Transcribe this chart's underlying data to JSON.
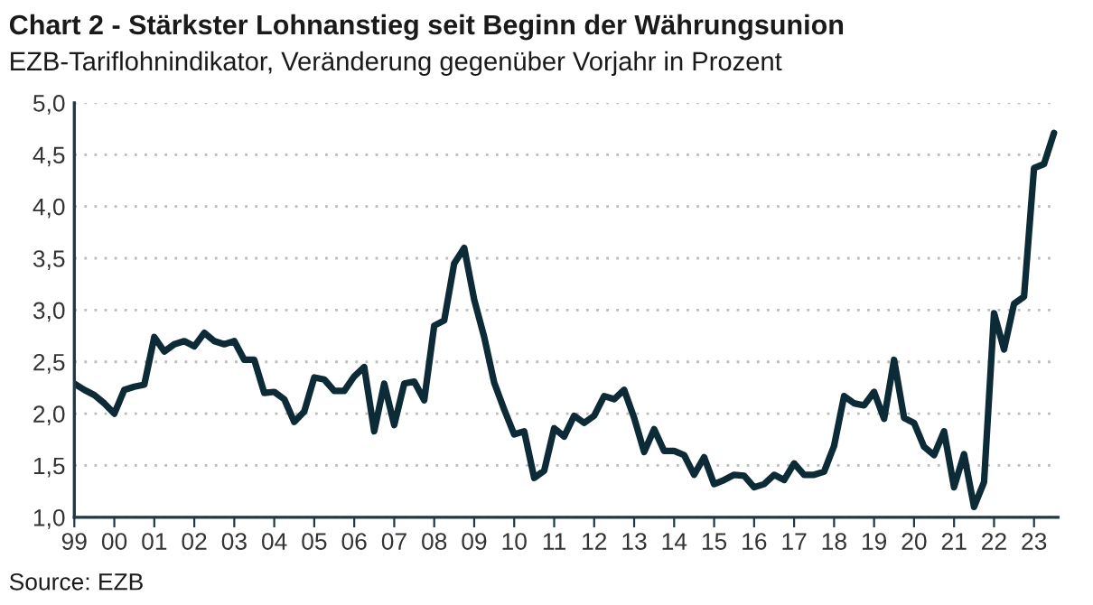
{
  "chart_data": {
    "type": "line",
    "title": "Chart 2 - Stärkster Lohnanstieg seit Beginn der Währungsunion",
    "subtitle": "EZB-Tariflohnindikator, Veränderung gegenüber Vorjahr in Prozent",
    "annotations": [
      "Source: EZB"
    ],
    "x": [
      1999.0,
      1999.25,
      1999.5,
      1999.75,
      2000.0,
      2000.25,
      2000.5,
      2000.75,
      2001.0,
      2001.25,
      2001.5,
      2001.75,
      2002.0,
      2002.25,
      2002.5,
      2002.75,
      2003.0,
      2003.25,
      2003.5,
      2003.75,
      2004.0,
      2004.25,
      2004.5,
      2004.75,
      2005.0,
      2005.25,
      2005.5,
      2005.75,
      2006.0,
      2006.25,
      2006.5,
      2006.75,
      2007.0,
      2007.25,
      2007.5,
      2007.75,
      2008.0,
      2008.25,
      2008.5,
      2008.75,
      2009.0,
      2009.25,
      2009.5,
      2009.75,
      2010.0,
      2010.25,
      2010.5,
      2010.75,
      2011.0,
      2011.25,
      2011.5,
      2011.75,
      2012.0,
      2012.25,
      2012.5,
      2012.75,
      2013.0,
      2013.25,
      2013.5,
      2013.75,
      2014.0,
      2014.25,
      2014.5,
      2014.75,
      2015.0,
      2015.25,
      2015.5,
      2015.75,
      2016.0,
      2016.25,
      2016.5,
      2016.75,
      2017.0,
      2017.25,
      2017.5,
      2017.75,
      2018.0,
      2018.25,
      2018.5,
      2018.75,
      2019.0,
      2019.25,
      2019.5,
      2019.75,
      2020.0,
      2020.25,
      2020.5,
      2020.75,
      2021.0,
      2021.25,
      2021.5,
      2021.75,
      2022.0,
      2022.25,
      2022.5,
      2022.75,
      2023.0,
      2023.25,
      2023.5
    ],
    "series": [
      {
        "color": "#0d2b36",
        "values": [
          2.29,
          2.23,
          2.18,
          2.1,
          2.0,
          2.23,
          2.26,
          2.28,
          2.74,
          2.6,
          2.67,
          2.7,
          2.65,
          2.78,
          2.7,
          2.67,
          2.7,
          2.52,
          2.52,
          2.2,
          2.21,
          2.14,
          1.92,
          2.02,
          2.35,
          2.33,
          2.22,
          2.22,
          2.36,
          2.45,
          1.83,
          2.29,
          1.89,
          2.29,
          2.31,
          2.13,
          2.85,
          2.9,
          3.45,
          3.6,
          3.1,
          2.74,
          2.3,
          2.04,
          1.8,
          1.83,
          1.38,
          1.45,
          1.86,
          1.78,
          1.98,
          1.91,
          1.98,
          2.17,
          2.14,
          2.23,
          1.96,
          1.63,
          1.85,
          1.64,
          1.64,
          1.6,
          1.41,
          1.58,
          1.32,
          1.36,
          1.41,
          1.4,
          1.29,
          1.32,
          1.41,
          1.36,
          1.52,
          1.41,
          1.41,
          1.44,
          1.69,
          2.17,
          2.1,
          2.08,
          2.21,
          1.95,
          2.52,
          1.96,
          1.91,
          1.68,
          1.6,
          1.83,
          1.29,
          1.61,
          1.1,
          1.34,
          2.97,
          2.62,
          3.06,
          3.13,
          4.37,
          4.41,
          4.71
        ]
      }
    ],
    "xlim": [
      1999,
      2023.6
    ],
    "xticks": [
      {
        "value": 1999,
        "label": "99"
      },
      {
        "value": 2000,
        "label": "00"
      },
      {
        "value": 2001,
        "label": "01"
      },
      {
        "value": 2002,
        "label": "02"
      },
      {
        "value": 2003,
        "label": "03"
      },
      {
        "value": 2004,
        "label": "04"
      },
      {
        "value": 2005,
        "label": "05"
      },
      {
        "value": 2006,
        "label": "06"
      },
      {
        "value": 2007,
        "label": "07"
      },
      {
        "value": 2008,
        "label": "08"
      },
      {
        "value": 2009,
        "label": "09"
      },
      {
        "value": 2010,
        "label": "10"
      },
      {
        "value": 2011,
        "label": "11"
      },
      {
        "value": 2012,
        "label": "12"
      },
      {
        "value": 2013,
        "label": "13"
      },
      {
        "value": 2014,
        "label": "14"
      },
      {
        "value": 2015,
        "label": "15"
      },
      {
        "value": 2016,
        "label": "16"
      },
      {
        "value": 2017,
        "label": "17"
      },
      {
        "value": 2018,
        "label": "18"
      },
      {
        "value": 2019,
        "label": "19"
      },
      {
        "value": 2020,
        "label": "20"
      },
      {
        "value": 2021,
        "label": "21"
      },
      {
        "value": 2022,
        "label": "22"
      },
      {
        "value": 2023,
        "label": "23"
      }
    ],
    "ylim": [
      1.0,
      5.0
    ],
    "yticks": [
      {
        "value": 1.0,
        "label": "1,0"
      },
      {
        "value": 1.5,
        "label": "1,5"
      },
      {
        "value": 2.0,
        "label": "2,0"
      },
      {
        "value": 2.5,
        "label": "2,5"
      },
      {
        "value": 3.0,
        "label": "3,0"
      },
      {
        "value": 3.5,
        "label": "3,5"
      },
      {
        "value": 4.0,
        "label": "4,0"
      },
      {
        "value": 4.5,
        "label": "4,5"
      },
      {
        "value": 5.0,
        "label": "5,0"
      }
    ],
    "grid": "y",
    "line_style": "solid"
  }
}
